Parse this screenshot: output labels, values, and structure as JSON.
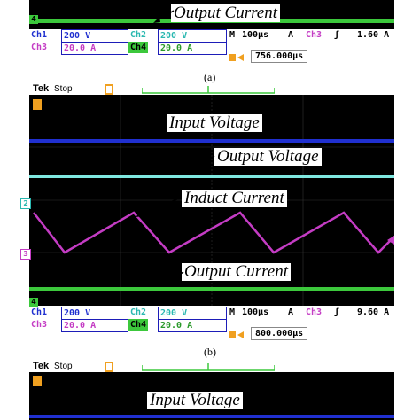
{
  "panel_a": {
    "label_output_current": "Output Current",
    "ch1": "Ch1",
    "ch1_scale": "200 V",
    "ch2": "Ch2",
    "ch2_scale": "200 V",
    "ch3": "Ch3",
    "ch3_scale": "20.0 A",
    "ch4": "Ch4",
    "ch4_scale": "20.0 A",
    "m": "M",
    "timebase": "100µs",
    "a": "A",
    "trig_ch": "Ch3",
    "trig_slope": "ʃ",
    "trig_level": "1.60 A",
    "trig_pos": "756.000µs",
    "caption": "(a)"
  },
  "panel_b": {
    "tek": "Tek",
    "stop": "Stop",
    "label_input_voltage": "Input Voltage",
    "label_output_voltage": "Output Voltage",
    "label_induct_current": "Induct Current",
    "label_output_current": "Output Current",
    "ch1": "Ch1",
    "ch1_scale": "200 V",
    "ch2": "Ch2",
    "ch2_scale": "200 V",
    "ch3": "Ch3",
    "ch3_scale": "20.0 A",
    "ch4": "Ch4",
    "ch4_scale": "20.0 A",
    "m": "M",
    "timebase": "100µs",
    "a": "A",
    "trig_ch": "Ch3",
    "trig_slope": "ʃ",
    "trig_level": "9.60 A",
    "trig_pos": "800.000µs",
    "marker_2": "2",
    "marker_3": "3",
    "marker_4": "4",
    "caption": "(b)"
  },
  "panel_c": {
    "tek": "Tek",
    "stop": "Stop",
    "label_input_voltage": "Input Voltage"
  },
  "colors": {
    "ch1_blue": "#2030d0",
    "ch2_cyan": "#7fe8e0",
    "ch3_magenta": "#c43cc4",
    "ch4_green": "#3cc83c",
    "trigger_orange": "#f0a020"
  }
}
